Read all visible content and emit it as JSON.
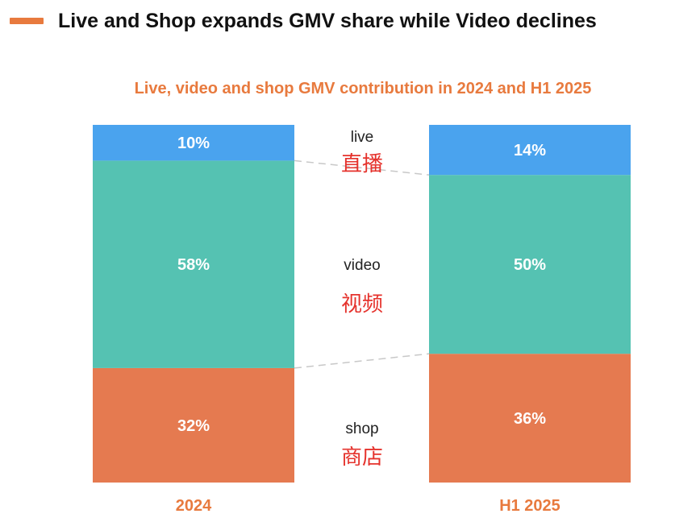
{
  "headline": "Live and Shop expands GMV share while Video declines",
  "colors": {
    "accent": "#E87A3E",
    "live": "#4AA3EE",
    "video": "#55C2B2",
    "shop": "#E57A50",
    "legend_zh": "#E5322C"
  },
  "chart_data": {
    "type": "bar",
    "stacked": true,
    "orientation": "vertical",
    "title": "Live, video and shop GMV contribution in 2024 and H1 2025",
    "categories": [
      "2024",
      "H1 2025"
    ],
    "series": [
      {
        "name": "shop",
        "name_zh": "商店",
        "values": [
          32,
          36
        ],
        "labels": [
          "32%",
          "36%"
        ]
      },
      {
        "name": "video",
        "name_zh": "视频",
        "values": [
          58,
          50
        ],
        "labels": [
          "58%",
          "50%"
        ]
      },
      {
        "name": "live",
        "name_zh": "直播",
        "values": [
          10,
          14
        ],
        "labels": [
          "10%",
          "14%"
        ]
      }
    ],
    "ylim": [
      0,
      100
    ],
    "unit": "%",
    "grid": false,
    "legend_position": "center between bars"
  }
}
